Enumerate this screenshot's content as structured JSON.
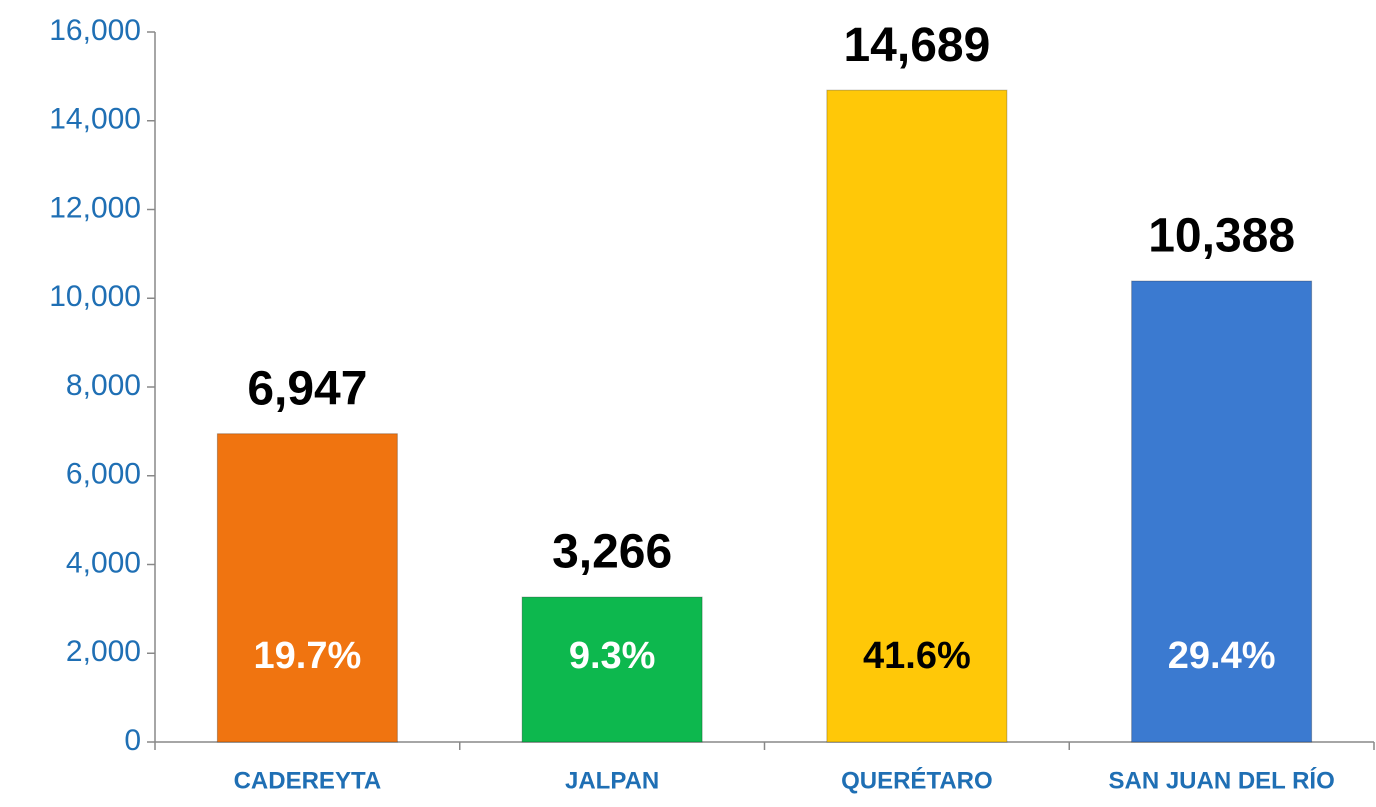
{
  "chart_data": {
    "type": "bar",
    "categories": [
      "CADEREYTA",
      "JALPAN",
      "QUERÉTARO",
      "SAN JUAN DEL RÍO"
    ],
    "values": [
      6947,
      3266,
      14689,
      10388
    ],
    "value_labels": [
      "6,947",
      "3,266",
      "14,689",
      "10,388"
    ],
    "share_labels": [
      "19.7%",
      "9.3%",
      "41.6%",
      "29.4%"
    ],
    "share_label_colors": [
      "#ffffff",
      "#ffffff",
      "#000000",
      "#ffffff"
    ],
    "colors": [
      "#f07410",
      "#0db84e",
      "#ffc808",
      "#3b7ad0"
    ],
    "ylim": [
      0,
      16000
    ],
    "yticks": [
      0,
      {
        "value": 2000,
        "label": "2,000"
      },
      {
        "value": 4000,
        "label": "4,000"
      },
      {
        "value": 6000,
        "label": "6,000"
      },
      {
        "value": 8000,
        "label": "8,000"
      },
      {
        "value": 10000,
        "label": "10,000"
      },
      {
        "value": 12000,
        "label": "12,000"
      },
      {
        "value": 14000,
        "label": "14,000"
      },
      {
        "value": 16000,
        "label": "16,000"
      }
    ]
  }
}
